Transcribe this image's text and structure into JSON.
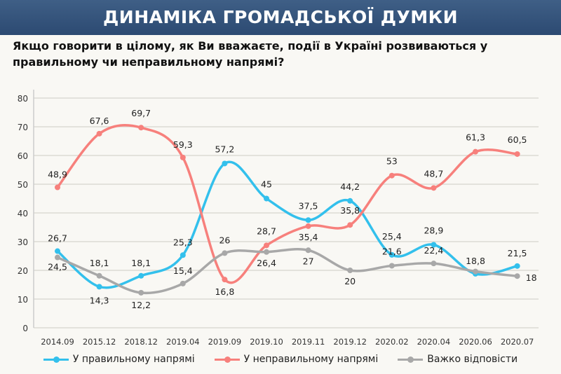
{
  "header": {
    "title": "ДИНАМІКА ГРОМАДСЬКОЇ ДУМКИ"
  },
  "question": "Якщо говорити в цілому, як Ви вважаєте, події в Україні розвиваються у правильному чи неправильному напрямі?",
  "chart_data": {
    "type": "line",
    "categories": [
      "2014.09",
      "2015.12",
      "2018.12",
      "2019.04",
      "2019.09",
      "2019.10",
      "2019.11",
      "2019.12",
      "2020.02",
      "2020.04",
      "2020.06",
      "2020.07"
    ],
    "ylim": [
      0,
      80
    ],
    "yticks": [
      0,
      10,
      20,
      30,
      40,
      50,
      60,
      70,
      80
    ],
    "grid": true,
    "legend_position": "bottom",
    "series": [
      {
        "name": "У правильному напрямі",
        "color": "#33c0ec",
        "values": [
          26.7,
          14.3,
          18.1,
          25.3,
          57.2,
          45,
          37.5,
          44.2,
          25.4,
          28.9,
          18.8,
          21.5
        ],
        "labels": [
          "26,7",
          "14,3",
          "18,1",
          "25,3",
          "57,2",
          "45",
          "37,5",
          "44,2",
          "25,4",
          "28,9",
          "18,8",
          "21,5"
        ]
      },
      {
        "name": "У неправильному напрямі",
        "color": "#f7807c",
        "values": [
          48.9,
          67.6,
          69.7,
          59.3,
          16.8,
          28.7,
          35.4,
          35.8,
          53,
          48.7,
          61.3,
          60.5
        ],
        "labels": [
          "48,9",
          "67,6",
          "69,7",
          "59,3",
          "16,8",
          "28,7",
          "35,4",
          "35,8",
          "53",
          "48,7",
          "61,3",
          "60,5"
        ]
      },
      {
        "name": "Важко відповісти",
        "color": "#a8a8a8",
        "values": [
          24.5,
          18.1,
          12.2,
          15.4,
          26,
          26.4,
          27,
          20,
          21.6,
          22.4,
          19.6,
          18
        ],
        "labels": [
          "24,5",
          "18,1",
          "12,2",
          "15,4",
          "26",
          "26,4",
          "27",
          "20",
          "21,6",
          "22,4",
          "",
          "18"
        ]
      }
    ]
  }
}
